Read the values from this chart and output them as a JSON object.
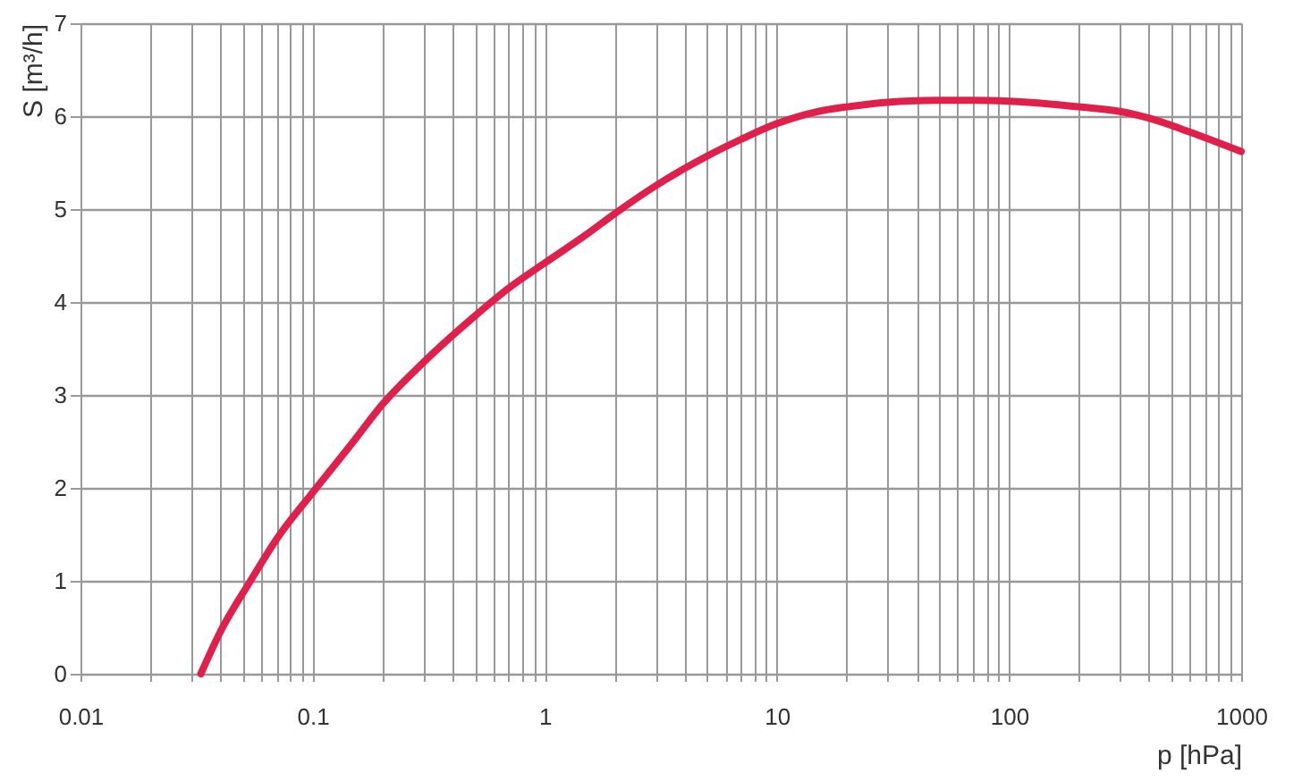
{
  "chart_data": {
    "type": "line",
    "xlabel": "p [hPa]",
    "ylabel": "S [m³/h]",
    "log": "x",
    "grid": true,
    "marker": "none",
    "line_style": "solid",
    "xlim": [
      0.01,
      1000
    ],
    "ylim": [
      0,
      7
    ],
    "yticks": [
      0,
      1,
      2,
      3,
      4,
      5,
      6,
      7
    ],
    "xticks": [
      0.01,
      {
        "value": 0.02,
        "label": null
      },
      {
        "value": 0.03,
        "label": null
      },
      {
        "value": 0.04,
        "label": null
      },
      {
        "value": 0.05,
        "label": null
      },
      {
        "value": 0.06,
        "label": null
      },
      {
        "value": 0.07,
        "label": null
      },
      {
        "value": 0.08,
        "label": null
      },
      {
        "value": 0.09,
        "label": null
      },
      0.1,
      {
        "value": 0.2,
        "label": null
      },
      {
        "value": 0.3,
        "label": null
      },
      {
        "value": 0.4,
        "label": null
      },
      {
        "value": 0.5,
        "label": null
      },
      {
        "value": 0.6,
        "label": null
      },
      {
        "value": 0.7,
        "label": null
      },
      {
        "value": 0.8,
        "label": null
      },
      {
        "value": 0.9,
        "label": null
      },
      1,
      {
        "value": 2,
        "label": null
      },
      {
        "value": 3,
        "label": null
      },
      {
        "value": 4,
        "label": null
      },
      {
        "value": 5,
        "label": null
      },
      {
        "value": 6,
        "label": null
      },
      {
        "value": 7,
        "label": null
      },
      {
        "value": 8,
        "label": null
      },
      {
        "value": 9,
        "label": null
      },
      10,
      {
        "value": 20,
        "label": null
      },
      {
        "value": 30,
        "label": null
      },
      {
        "value": 40,
        "label": null
      },
      {
        "value": 50,
        "label": null
      },
      {
        "value": 60,
        "label": null
      },
      {
        "value": 70,
        "label": null
      },
      {
        "value": 80,
        "label": null
      },
      {
        "value": 90,
        "label": null
      },
      100,
      {
        "value": 200,
        "label": null
      },
      {
        "value": 300,
        "label": null
      },
      {
        "value": 400,
        "label": null
      },
      {
        "value": 500,
        "label": null
      },
      {
        "value": 600,
        "label": null
      },
      {
        "value": 700,
        "label": null
      },
      {
        "value": 800,
        "label": null
      },
      {
        "value": 900,
        "label": null
      },
      1000
    ],
    "series": [
      {
        "color": "#e0204a",
        "x": [
          0.033,
          0.04,
          0.054,
          0.07,
          0.1,
          0.15,
          0.2,
          0.3,
          0.5,
          0.7,
          1,
          1.5,
          2,
          3,
          5,
          7,
          10,
          15,
          20,
          30,
          50,
          70,
          100,
          150,
          200,
          300,
          400,
          600,
          1000
        ],
        "values": [
          0,
          0.45,
          1.0,
          1.45,
          1.95,
          2.5,
          2.9,
          3.35,
          3.85,
          4.15,
          4.42,
          4.72,
          4.95,
          5.25,
          5.57,
          5.75,
          5.92,
          6.05,
          6.1,
          6.15,
          6.17,
          6.17,
          6.16,
          6.13,
          6.1,
          6.05,
          5.98,
          5.83,
          5.62
        ]
      }
    ]
  }
}
